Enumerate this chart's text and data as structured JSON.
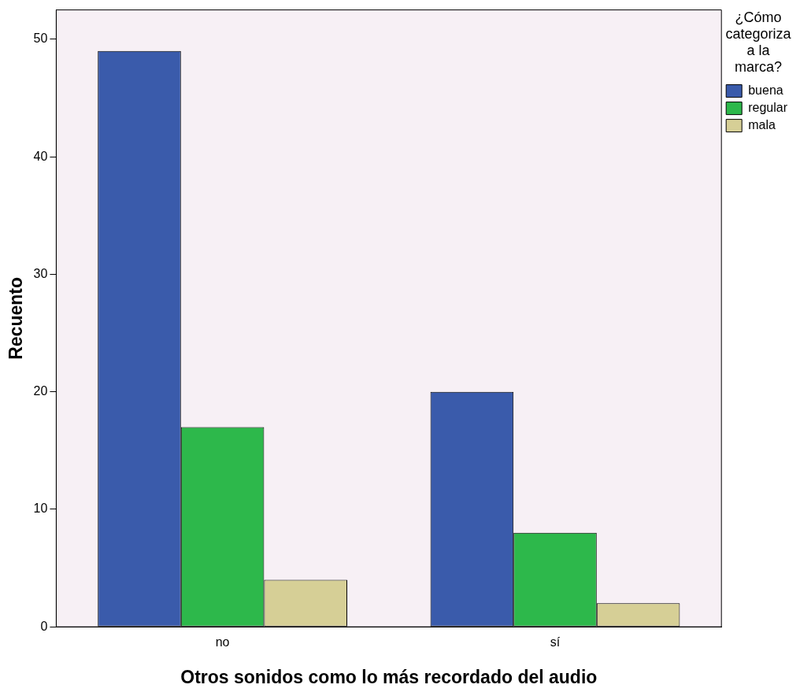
{
  "chart_data": {
    "type": "bar",
    "xlabel": "Otros sonidos como lo más recordado del audio",
    "ylabel": "Recuento",
    "legend_title": "¿Cómo categoriza a la marca?",
    "categories": [
      "no",
      "sí"
    ],
    "series": [
      {
        "name": "buena",
        "color": "#3a5bab",
        "values": [
          49,
          20
        ]
      },
      {
        "name": "regular",
        "color": "#2db84b",
        "values": [
          17,
          8
        ]
      },
      {
        "name": "mala",
        "color": "#d6cf96",
        "values": [
          4,
          2
        ]
      }
    ],
    "ylim": [
      0,
      52.5
    ],
    "yticks": [
      0,
      10,
      20,
      30,
      40,
      50
    ],
    "grid": false,
    "legend": "top right"
  }
}
